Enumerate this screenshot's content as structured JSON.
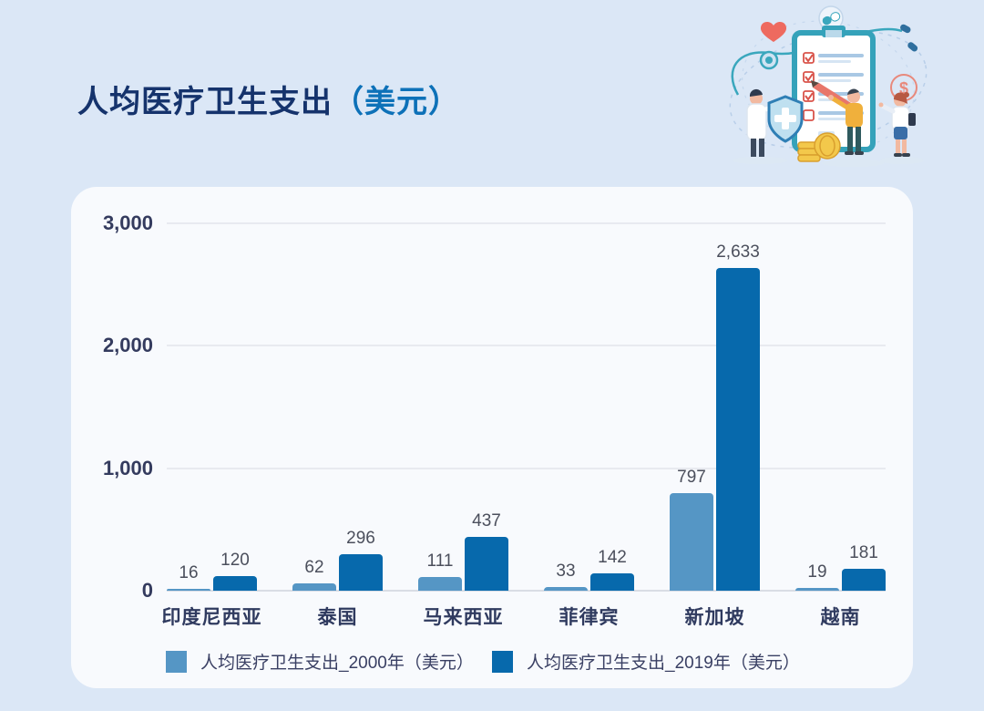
{
  "page": {
    "title_main": "人均医疗卫生支出",
    "title_unit": "（美元）"
  },
  "colors": {
    "page_bg": "#dbe7f6",
    "card_bg": "#f8fafd",
    "title_main": "#15336c",
    "title_unit": "#0d71b8",
    "bar_2000": "#5596c5",
    "bar_2019": "#0769ac",
    "gridline": "#e8eaf0",
    "axis_line": "#d9dde5",
    "tick_label": "#343b5e",
    "value_label": "#4b4f5c",
    "category_label": "#2f3a5f",
    "legend_text": "#393f63"
  },
  "illustration": {
    "name": "medical-checklist-illustration",
    "elements": [
      "clipboard-checklist",
      "doctor-with-shield",
      "person-with-pencil",
      "female-doctor",
      "heart",
      "stethoscope",
      "pill-icon",
      "dollar-coin-icon",
      "gold-coins"
    ]
  },
  "chart_data": {
    "type": "bar",
    "title": "人均医疗卫生支出（美元）",
    "categories": [
      "印度尼西亚",
      "泰国",
      "马来西亚",
      "菲律宾",
      "新加坡",
      "越南"
    ],
    "series": [
      {
        "name": "人均医疗卫生支出_2000年（美元）",
        "color": "#5596c5",
        "values": [
          16,
          62,
          111,
          33,
          797,
          19
        ],
        "labels": [
          "16",
          "62",
          "111",
          "33",
          "797",
          "19"
        ]
      },
      {
        "name": "人均医疗卫生支出_2019年（美元）",
        "color": "#0769ac",
        "values": [
          120,
          296,
          437,
          142,
          2633,
          181
        ],
        "labels": [
          "120",
          "296",
          "437",
          "142",
          "2,633",
          "181"
        ]
      }
    ],
    "ylim": [
      0,
      3000
    ],
    "yticks": [
      {
        "value": 0,
        "label": "0"
      },
      {
        "value": 1000,
        "label": "1,000"
      },
      {
        "value": 2000,
        "label": "2,000"
      },
      {
        "value": 3000,
        "label": "3,000"
      }
    ],
    "grid": true,
    "legend_position": "bottom"
  }
}
